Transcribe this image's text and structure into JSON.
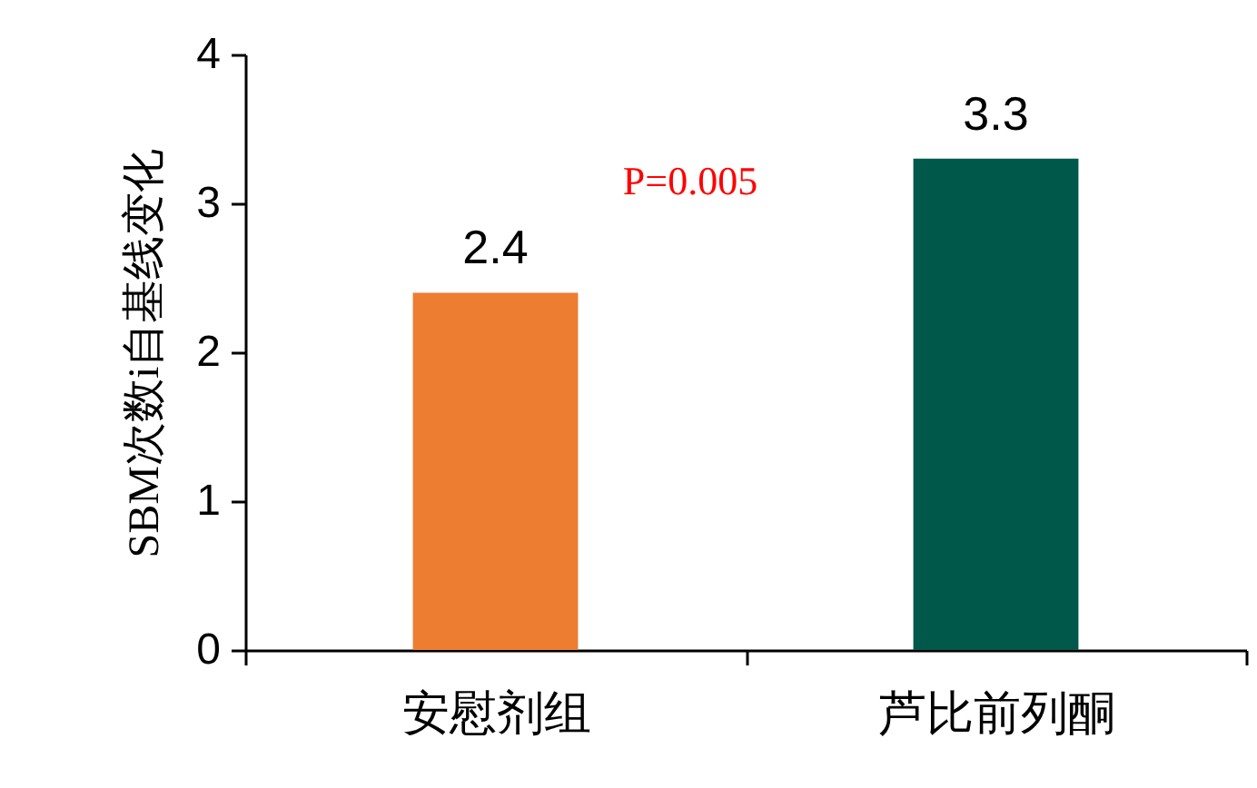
{
  "chart_data": {
    "type": "bar",
    "ylabel": "SBM次数i自基线变化",
    "categories": [
      "安慰剂组",
      "芦比前列酮"
    ],
    "values": [
      2.4,
      3.3
    ],
    "colors": [
      "#ed7d31",
      "#00584a"
    ],
    "ylim": [
      0,
      4
    ],
    "yticks": [
      0,
      1,
      2,
      3,
      4
    ],
    "data_labels": true,
    "grid": false,
    "annotations": [
      "P=0.005"
    ]
  }
}
